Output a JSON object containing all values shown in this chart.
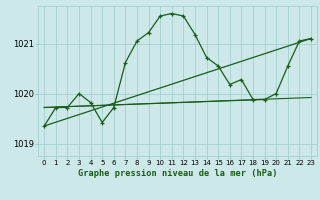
{
  "bg_color": "#cce8e8",
  "grid_color": "#99cccc",
  "line_color": "#1a5c1a",
  "title": "Graphe pression niveau de la mer (hPa)",
  "title_color": "#1a5c1a",
  "xlim": [
    -0.5,
    23.5
  ],
  "ylim": [
    1018.75,
    1021.75
  ],
  "yticks": [
    1019,
    1020,
    1021
  ],
  "xticks": [
    0,
    1,
    2,
    3,
    4,
    5,
    6,
    7,
    8,
    9,
    10,
    11,
    12,
    13,
    14,
    15,
    16,
    17,
    18,
    19,
    20,
    21,
    22,
    23
  ],
  "series1_x": [
    0,
    1,
    2,
    3,
    4,
    5,
    6,
    7,
    8,
    9,
    10,
    11,
    12,
    13,
    14,
    15,
    16,
    17,
    18,
    19,
    20,
    21,
    22,
    23
  ],
  "series1_y": [
    1019.35,
    1019.72,
    1019.72,
    1020.0,
    1019.82,
    1019.42,
    1019.72,
    1020.62,
    1021.05,
    1021.22,
    1021.55,
    1021.6,
    1021.55,
    1021.18,
    1020.72,
    1020.55,
    1020.18,
    1020.28,
    1019.88,
    1019.88,
    1020.0,
    1020.55,
    1021.05,
    1021.1
  ],
  "line1_x": [
    0,
    23
  ],
  "line1_y": [
    1019.35,
    1021.1
  ],
  "line2_x": [
    0,
    23
  ],
  "line2_y": [
    1019.72,
    1019.92
  ],
  "line3_x": [
    0,
    19
  ],
  "line3_y": [
    1019.72,
    1019.88
  ]
}
